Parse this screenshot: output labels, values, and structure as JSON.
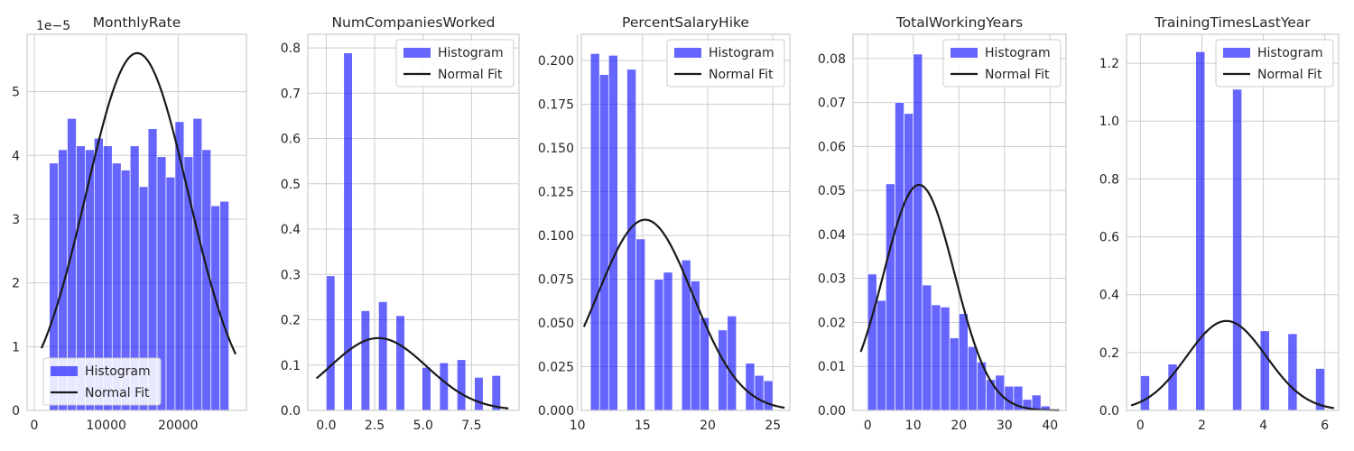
{
  "chart_data": [
    {
      "type": "bar",
      "title": "MonthlyRate",
      "xlabel": "",
      "ylabel": "",
      "y_offset_label": "1e−5",
      "xlim": [
        -1000,
        29500
      ],
      "ylim": [
        0,
        5.9
      ],
      "xticks": [
        0,
        10000,
        20000
      ],
      "yticks": [
        0,
        1,
        2,
        3,
        4,
        5
      ],
      "legend_position": "bottom-left",
      "histogram": {
        "name": "Histogram",
        "bin_start": 2094,
        "bin_width": 1248.6,
        "values": [
          3.88,
          4.09,
          4.58,
          4.15,
          4.09,
          4.27,
          4.15,
          3.88,
          3.77,
          4.15,
          3.51,
          4.42,
          3.98,
          3.66,
          4.53,
          3.98,
          4.58,
          4.09,
          3.21,
          3.28
        ]
      },
      "normal_fit": {
        "name": "Normal Fit",
        "mean": 14313,
        "std": 7118,
        "x_range": [
          1000,
          28000
        ],
        "scale": 100000
      }
    },
    {
      "type": "bar",
      "title": "NumCompaniesWorked",
      "xlabel": "",
      "ylabel": "",
      "xlim": [
        -0.95,
        9.95
      ],
      "ylim": [
        0,
        0.83
      ],
      "xticks": [
        0.0,
        2.5,
        5.0,
        7.5
      ],
      "xtick_labels": [
        "0.0",
        "2.5",
        "5.0",
        "7.5"
      ],
      "yticks": [
        0.0,
        0.1,
        0.2,
        0.3,
        0.4,
        0.5,
        0.6,
        0.7,
        0.8
      ],
      "ytick_labels": [
        "0.0",
        "0.1",
        "0.2",
        "0.3",
        "0.4",
        "0.5",
        "0.6",
        "0.7",
        "0.8"
      ],
      "legend_position": "top-right",
      "histogram": {
        "name": "Histogram",
        "bins": [
          {
            "x0": 0.0,
            "x1": 0.45,
            "value": 0.297
          },
          {
            "x0": 0.9,
            "x1": 1.35,
            "value": 0.789
          },
          {
            "x0": 1.8,
            "x1": 2.25,
            "value": 0.22
          },
          {
            "x0": 2.7,
            "x1": 3.15,
            "value": 0.24
          },
          {
            "x0": 3.6,
            "x1": 4.05,
            "value": 0.209
          },
          {
            "x0": 4.95,
            "x1": 5.4,
            "value": 0.095
          },
          {
            "x0": 5.85,
            "x1": 6.3,
            "value": 0.105
          },
          {
            "x0": 6.75,
            "x1": 7.2,
            "value": 0.112
          },
          {
            "x0": 7.65,
            "x1": 8.1,
            "value": 0.073
          },
          {
            "x0": 8.55,
            "x1": 9.0,
            "value": 0.077
          }
        ]
      },
      "normal_fit": {
        "name": "Normal Fit",
        "mean": 2.69,
        "std": 2.5,
        "x_range": [
          -0.5,
          9.4
        ],
        "scale": 1
      }
    },
    {
      "type": "bar",
      "title": "PercentSalaryHike",
      "xlabel": "",
      "ylabel": "",
      "xlim": [
        10.3,
        26.3
      ],
      "ylim": [
        0,
        0.215
      ],
      "xticks": [
        10,
        15,
        20,
        25
      ],
      "yticks": [
        0.0,
        0.025,
        0.05,
        0.075,
        0.1,
        0.125,
        0.15,
        0.175,
        0.2
      ],
      "ytick_labels": [
        "0.000",
        "0.025",
        "0.050",
        "0.075",
        "0.100",
        "0.125",
        "0.150",
        "0.175",
        "0.200"
      ],
      "legend_position": "top-right",
      "histogram": {
        "name": "Histogram",
        "bin_start": 11,
        "bin_width": 0.7,
        "values": [
          0.204,
          0.192,
          0.203,
          0,
          0.195,
          0.098,
          0,
          0.075,
          0.079,
          0,
          0.086,
          0.074,
          0.053,
          0,
          0.046,
          0.054,
          0,
          0.027,
          0.02,
          0.017
        ]
      },
      "normal_fit": {
        "name": "Normal Fit",
        "mean": 15.2,
        "std": 3.66,
        "x_range": [
          10.5,
          25.9
        ],
        "scale": 1
      }
    },
    {
      "type": "bar",
      "title": "TotalWorkingYears",
      "xlabel": "",
      "ylabel": "",
      "xlim": [
        -3.2,
        43.5
      ],
      "ylim": [
        0,
        0.0855
      ],
      "xticks": [
        0,
        10,
        20,
        30,
        40
      ],
      "yticks": [
        0.0,
        0.01,
        0.02,
        0.03,
        0.04,
        0.05,
        0.06,
        0.07,
        0.08
      ],
      "ytick_labels": [
        "0.00",
        "0.01",
        "0.02",
        "0.03",
        "0.04",
        "0.05",
        "0.06",
        "0.07",
        "0.08"
      ],
      "legend_position": "top-right",
      "histogram": {
        "name": "Histogram",
        "bin_start": 0,
        "bin_width": 2,
        "values": [
          0.031,
          0.025,
          0.0515,
          0.07,
          0.0675,
          0.081,
          0.0285,
          0.024,
          0.0235,
          0.0165,
          0.022,
          0.0145,
          0.011,
          0.007,
          0.008,
          0.0055,
          0.0055,
          0.0025,
          0.0035,
          0.001
        ]
      },
      "normal_fit": {
        "name": "Normal Fit",
        "mean": 11.28,
        "std": 7.78,
        "x_range": [
          -1.5,
          42
        ],
        "scale": 1
      }
    },
    {
      "type": "bar",
      "title": "TrainingTimesLastYear",
      "xlabel": "",
      "ylabel": "",
      "xlim": [
        -0.45,
        6.45
      ],
      "ylim": [
        0,
        1.3
      ],
      "xticks": [
        0,
        2,
        4,
        6
      ],
      "yticks": [
        0.0,
        0.2,
        0.4,
        0.6,
        0.8,
        1.0,
        1.2
      ],
      "ytick_labels": [
        "0.0",
        "0.2",
        "0.4",
        "0.6",
        "0.8",
        "1.0",
        "1.2"
      ],
      "legend_position": "top-right",
      "histogram": {
        "name": "Histogram",
        "bins": [
          {
            "x0": 0.0,
            "x1": 0.3,
            "value": 0.12
          },
          {
            "x0": 0.9,
            "x1": 1.2,
            "value": 0.16
          },
          {
            "x0": 1.8,
            "x1": 2.1,
            "value": 1.24
          },
          {
            "x0": 3.0,
            "x1": 3.3,
            "value": 1.11
          },
          {
            "x0": 3.9,
            "x1": 4.2,
            "value": 0.275
          },
          {
            "x0": 4.8,
            "x1": 5.1,
            "value": 0.265
          },
          {
            "x0": 5.7,
            "x1": 6.0,
            "value": 0.145
          }
        ]
      },
      "normal_fit": {
        "name": "Normal Fit",
        "mean": 2.8,
        "std": 1.29,
        "x_range": [
          -0.3,
          6.3
        ],
        "scale": 1
      }
    }
  ]
}
